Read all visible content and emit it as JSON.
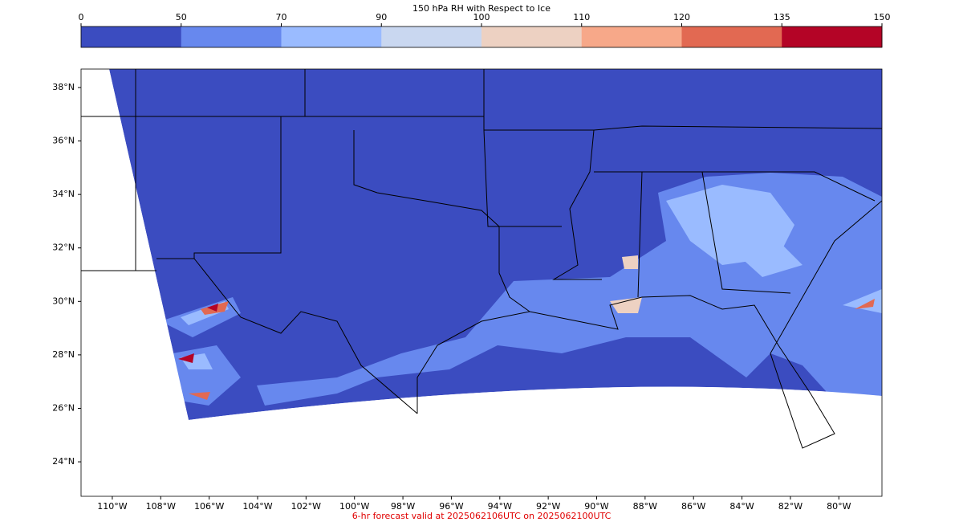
{
  "colorbar": {
    "title": "150 hPa RH with Respect to Ice",
    "levels": [
      0,
      50,
      70,
      90,
      100,
      110,
      120,
      135,
      150
    ],
    "colors": [
      "#3b4cc0",
      "#6788ee",
      "#9abbff",
      "#c9d7f0",
      "#edd1c2",
      "#f7a889",
      "#e26952",
      "#b40426"
    ]
  },
  "map": {
    "xlim": [
      -111.29,
      -78.22
    ],
    "ylim": [
      22.71,
      38.69
    ],
    "xticks": [
      {
        "value": -110,
        "label": "110°W"
      },
      {
        "value": -108,
        "label": "108°W"
      },
      {
        "value": -106,
        "label": "106°W"
      },
      {
        "value": -104,
        "label": "104°W"
      },
      {
        "value": -102,
        "label": "102°W"
      },
      {
        "value": -100,
        "label": "100°W"
      },
      {
        "value": -98,
        "label": "98°W"
      },
      {
        "value": -96,
        "label": "96°W"
      },
      {
        "value": -94,
        "label": "94°W"
      },
      {
        "value": -92,
        "label": "92°W"
      },
      {
        "value": -90,
        "label": "90°W"
      },
      {
        "value": -88,
        "label": "88°W"
      },
      {
        "value": -86,
        "label": "86°W"
      },
      {
        "value": -84,
        "label": "84°W"
      },
      {
        "value": -82,
        "label": "82°W"
      },
      {
        "value": -80,
        "label": "80°W"
      }
    ],
    "yticks": [
      {
        "value": 38,
        "label": "38°N"
      },
      {
        "value": 36,
        "label": "36°N"
      },
      {
        "value": 34,
        "label": "34°N"
      },
      {
        "value": 32,
        "label": "32°N"
      },
      {
        "value": 30,
        "label": "30°N"
      },
      {
        "value": 28,
        "label": "28°N"
      },
      {
        "value": 26,
        "label": "26°N"
      },
      {
        "value": 24,
        "label": "24°N"
      }
    ]
  },
  "footer": "6-hr forecast valid at 2025062106UTC on 2025062100UTC"
}
